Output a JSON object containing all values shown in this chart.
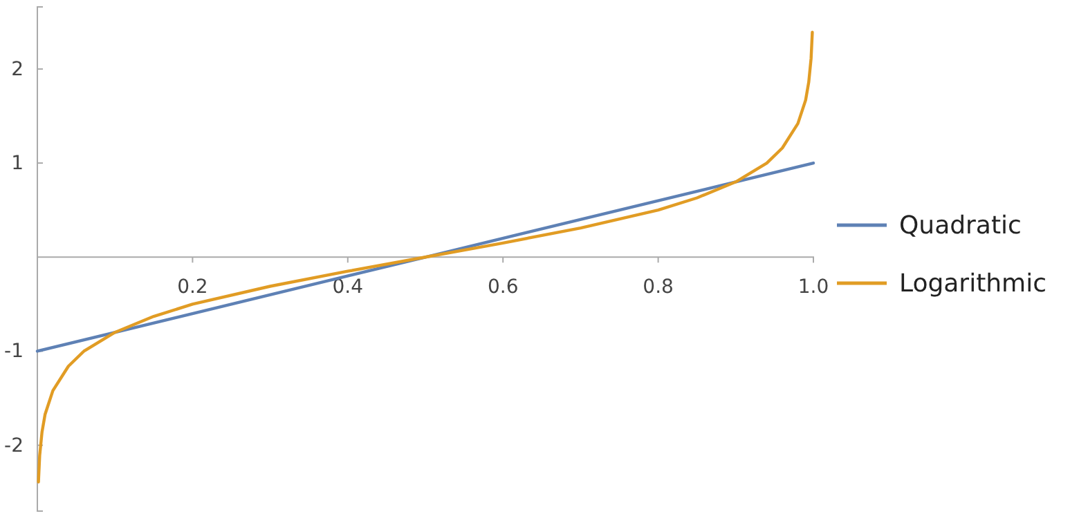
{
  "chart_data": {
    "type": "line",
    "xlim": [
      0,
      1
    ],
    "ylim": [
      -2.7,
      2.66
    ],
    "xticks": [
      0.2,
      0.4,
      0.6,
      0.8,
      {
        "value": 1,
        "label": "1.0"
      }
    ],
    "yticks": [
      -2,
      -1,
      1,
      2
    ],
    "grid": false,
    "legend": "right",
    "marker": "none",
    "line_style": "solid",
    "series": [
      {
        "name": "Quadratic",
        "color": "#5e81b5",
        "x": [
          0,
          0.5,
          1
        ],
        "values": [
          -1,
          0,
          1
        ]
      },
      {
        "name": "Logarithmic",
        "color": "#e19c24",
        "x": [
          0.0014,
          0.003,
          0.006,
          0.01,
          0.02,
          0.04,
          0.06,
          0.1,
          0.15,
          0.2,
          0.3,
          0.4,
          0.5,
          0.6,
          0.7,
          0.8,
          0.85,
          0.9,
          0.94,
          0.96,
          0.98,
          0.99,
          0.994,
          0.997,
          0.9986
        ],
        "values": [
          -2.39,
          -2.11,
          -1.86,
          -1.67,
          -1.42,
          -1.16,
          -1.0,
          -0.8,
          -0.63,
          -0.5,
          -0.31,
          -0.15,
          0,
          0.15,
          0.31,
          0.5,
          0.63,
          0.8,
          1.0,
          1.16,
          1.42,
          1.67,
          1.86,
          2.11,
          2.39
        ]
      }
    ]
  }
}
